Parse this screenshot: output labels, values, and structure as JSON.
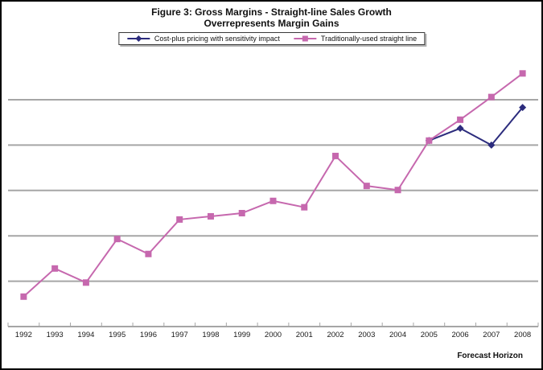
{
  "title": {
    "line1": "Figure 3: Gross Margins - Straight-line Sales Growth",
    "line2": "Overrepresents Margin Gains"
  },
  "chart_data": {
    "type": "line",
    "title": "Figure 3: Gross Margins - Straight-line Sales Growth Overrepresents Margin Gains",
    "xlabel": "Forecast Horizon",
    "ylabel": "",
    "x_categories": [
      "1992",
      "1993",
      "1994",
      "1995",
      "1996",
      "1997",
      "1998",
      "1999",
      "2000",
      "2001",
      "2002",
      "2003",
      "2004",
      "2005",
      "2006",
      "2007",
      "2008"
    ],
    "y_axis": {
      "tick_labels_visible": false,
      "unit": "relative gridline units (y axis is unlabeled; 1 unit = spacing between gridlines, 0 = x-axis baseline)",
      "ylim": [
        0,
        6.3
      ],
      "gridlines_at": [
        1,
        2,
        3,
        4,
        5
      ]
    },
    "legend_position": "top-center",
    "grid_on": true,
    "grid_color": "#A6A6A6",
    "axis_color": "#A6A6A6",
    "series": [
      {
        "name": "Cost-plus pricing with sensitivity impact",
        "color": "#2C2C7D",
        "marker": "diamond",
        "values": [
          null,
          null,
          null,
          null,
          null,
          null,
          null,
          null,
          null,
          null,
          null,
          null,
          null,
          4.1,
          4.37,
          4.0,
          4.83
        ]
      },
      {
        "name": "Traditionally-used straight line",
        "color": "#C668AE",
        "marker": "square",
        "values": [
          0.66,
          1.28,
          0.97,
          1.93,
          1.6,
          2.36,
          2.43,
          2.5,
          2.77,
          2.63,
          3.76,
          3.1,
          3.01,
          4.1,
          4.56,
          5.06,
          5.58
        ]
      }
    ]
  }
}
